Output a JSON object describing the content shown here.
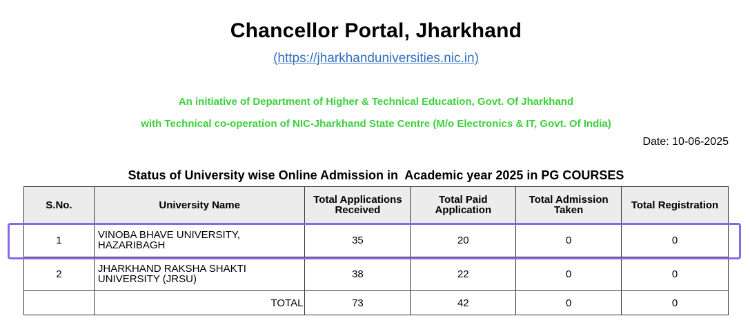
{
  "header": {
    "title": "Chancellor Portal, Jharkhand",
    "url_text": "(https://jharkhanduniversities.nic.in)",
    "initiative_line1": "An initiative of Department of Higher & Technical Education, Govt. Of Jharkhand",
    "initiative_line2": "with Technical co-operation of NIC-Jharkhand State Centre (M/o Electronics & IT, Govt. Of India)",
    "date": "Date: 10-06-2025",
    "initiative_color": "#3ad13a",
    "link_color": "#2f6fbf"
  },
  "table": {
    "title": "Status of University wise Online Admission in  Academic year 2025 in PG COURSES",
    "columns": [
      "S.No.",
      "University Name",
      "Total Applications Received",
      "Total Paid Application",
      "Total Admission Taken",
      "Total Registration"
    ],
    "rows": [
      {
        "sno": "1",
        "university_line1": "VINOBA BHAVE UNIVERSITY,",
        "university_line2": "HAZARIBAGH",
        "applications": "35",
        "paid": "20",
        "admission": "0",
        "registration": "0"
      },
      {
        "sno": "2",
        "university_line1": "JHARKHAND RAKSHA SHAKTI",
        "university_line2": "UNIVERSITY (JRSU)",
        "applications": "38",
        "paid": "22",
        "admission": "0",
        "registration": "0"
      }
    ],
    "total": {
      "label": "TOTAL",
      "applications": "73",
      "paid": "42",
      "admission": "0",
      "registration": "0"
    }
  },
  "highlight_color": "#8a67e6"
}
